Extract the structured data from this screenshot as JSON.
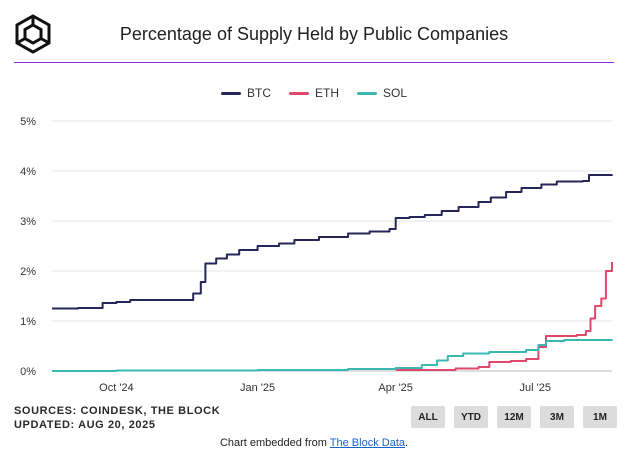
{
  "header": {
    "title": "Percentage of Supply Held by Public Companies"
  },
  "footer": {
    "sources": "SOURCES: COINDESK, THE BLOCK",
    "updated": "UPDATED: AUG 20, 2025",
    "embed_text": "Chart embedded from ",
    "embed_link": "The Block Data",
    "embed_suffix": "."
  },
  "range_buttons": [
    "ALL",
    "YTD",
    "12M",
    "3M",
    "1M"
  ],
  "colors": {
    "btc": "#272659",
    "eth": "#e0486b",
    "sol": "#3bb8b3",
    "accent_rule": "#8a2be2"
  },
  "chart_data": {
    "type": "line",
    "title": "Percentage of Supply Held by Public Companies",
    "x_ticks": [
      "Oct '24",
      "Jan '25",
      "Apr '25",
      "Jul '25"
    ],
    "y_ticks": [
      "0%",
      "1%",
      "2%",
      "3%",
      "4%",
      "5%"
    ],
    "ylim": [
      0,
      5
    ],
    "xlim": [
      "2024-08-20",
      "2025-08-20"
    ],
    "grid": "horizontal",
    "legend": "top-center",
    "series": [
      {
        "name": "BTC",
        "points": [
          [
            "2024-08-20",
            1.25
          ],
          [
            "2024-09-06",
            1.26
          ],
          [
            "2024-09-22",
            1.36
          ],
          [
            "2024-10-01",
            1.38
          ],
          [
            "2024-10-10",
            1.42
          ],
          [
            "2024-11-20",
            1.55
          ],
          [
            "2024-11-25",
            1.78
          ],
          [
            "2024-11-28",
            2.15
          ],
          [
            "2024-12-05",
            2.25
          ],
          [
            "2024-12-12",
            2.33
          ],
          [
            "2024-12-20",
            2.42
          ],
          [
            "2025-01-01",
            2.5
          ],
          [
            "2025-01-15",
            2.55
          ],
          [
            "2025-01-25",
            2.62
          ],
          [
            "2025-02-10",
            2.68
          ],
          [
            "2025-03-01",
            2.75
          ],
          [
            "2025-03-15",
            2.79
          ],
          [
            "2025-03-28",
            2.84
          ],
          [
            "2025-04-01",
            3.06
          ],
          [
            "2025-04-10",
            3.08
          ],
          [
            "2025-04-20",
            3.12
          ],
          [
            "2025-05-01",
            3.2
          ],
          [
            "2025-05-12",
            3.28
          ],
          [
            "2025-05-25",
            3.38
          ],
          [
            "2025-06-02",
            3.47
          ],
          [
            "2025-06-12",
            3.58
          ],
          [
            "2025-06-22",
            3.66
          ],
          [
            "2025-07-05",
            3.73
          ],
          [
            "2025-07-15",
            3.79
          ],
          [
            "2025-08-01",
            3.8
          ],
          [
            "2025-08-05",
            3.92
          ],
          [
            "2025-08-20",
            3.93
          ]
        ]
      },
      {
        "name": "ETH",
        "points": [
          [
            "2025-04-01",
            0.02
          ],
          [
            "2025-05-10",
            0.05
          ],
          [
            "2025-05-25",
            0.08
          ],
          [
            "2025-06-01",
            0.18
          ],
          [
            "2025-06-15",
            0.2
          ],
          [
            "2025-06-25",
            0.24
          ],
          [
            "2025-07-03",
            0.48
          ],
          [
            "2025-07-08",
            0.7
          ],
          [
            "2025-07-28",
            0.72
          ],
          [
            "2025-08-03",
            0.8
          ],
          [
            "2025-08-06",
            1.05
          ],
          [
            "2025-08-09",
            1.3
          ],
          [
            "2025-08-13",
            1.45
          ],
          [
            "2025-08-16",
            2.0
          ],
          [
            "2025-08-20",
            2.18
          ]
        ]
      },
      {
        "name": "SOL",
        "points": [
          [
            "2024-08-20",
            0.0
          ],
          [
            "2024-10-01",
            0.01
          ],
          [
            "2025-01-01",
            0.02
          ],
          [
            "2025-03-01",
            0.04
          ],
          [
            "2025-04-01",
            0.06
          ],
          [
            "2025-04-18",
            0.12
          ],
          [
            "2025-04-28",
            0.21
          ],
          [
            "2025-05-05",
            0.3
          ],
          [
            "2025-05-15",
            0.35
          ],
          [
            "2025-06-01",
            0.38
          ],
          [
            "2025-06-25",
            0.42
          ],
          [
            "2025-07-03",
            0.52
          ],
          [
            "2025-07-08",
            0.6
          ],
          [
            "2025-07-20",
            0.62
          ],
          [
            "2025-08-20",
            0.63
          ]
        ]
      }
    ]
  }
}
